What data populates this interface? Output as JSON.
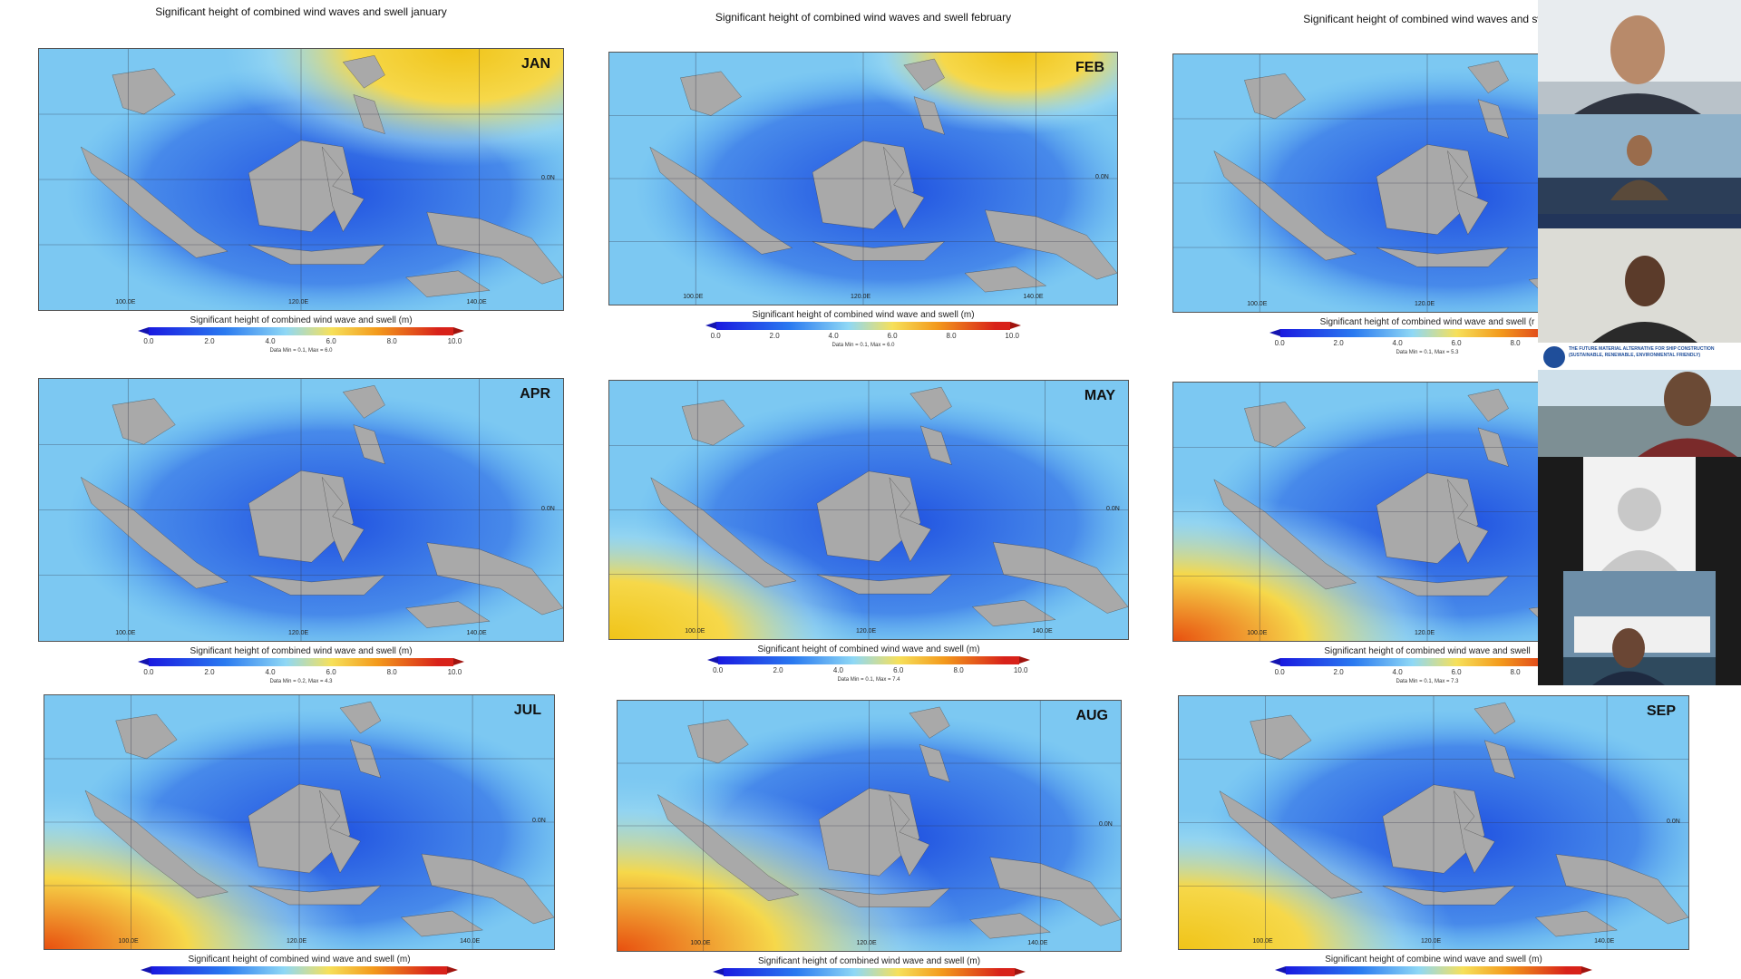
{
  "slides": {
    "panels": [
      {
        "title": "Significant height of combined wind waves and swell january",
        "month": "JAN",
        "lon_labels": [
          "100.0E",
          "120.0E",
          "140.0E"
        ],
        "lat_label": "0.0N",
        "colorbar_title": "Significant height of combined wind wave and swell (m)",
        "colorbar_ticks": [
          "0.0",
          "2.0",
          "4.0",
          "6.0",
          "8.0",
          "10.0"
        ],
        "note": "Data Min = 0.1, Max = 6.0"
      },
      {
        "title": "Significant height of combined wind waves and swell february",
        "month": "FEB",
        "lon_labels": [
          "100.0E",
          "120.0E",
          "140.0E"
        ],
        "lat_label": "0.0N",
        "colorbar_title": "Significant height of combined wind wave and swell (m)",
        "colorbar_ticks": [
          "0.0",
          "2.0",
          "4.0",
          "6.0",
          "8.0",
          "10.0"
        ],
        "note": "Data Min = 0.1, Max = 6.0"
      },
      {
        "title": "Significant height of combined wind waves and swe",
        "lon_labels": [
          "100.0E",
          "120.0E"
        ],
        "colorbar_title": "Significant height of combined wind wave and swell (r",
        "colorbar_ticks": [
          "0.0",
          "2.0",
          "4.0",
          "6.0",
          "8.0"
        ],
        "note": "Data Min = 0.1, Max = 5.3"
      },
      {
        "month": "APR",
        "lon_labels": [
          "100.0E",
          "120.0E",
          "140.0E"
        ],
        "lat_label": "0.0N",
        "colorbar_title": "Significant height of combined wind wave and swell (m)",
        "colorbar_ticks": [
          "0.0",
          "2.0",
          "4.0",
          "6.0",
          "8.0",
          "10.0"
        ],
        "note": "Data Min = 0.2, Max = 4.3"
      },
      {
        "month": "MAY",
        "lon_labels": [
          "100.0E",
          "120.0E",
          "140.0E"
        ],
        "lat_label": "0.0N",
        "colorbar_title": "Significant height of combined wind wave and swell (m)",
        "colorbar_ticks": [
          "0.0",
          "2.0",
          "4.0",
          "6.0",
          "8.0",
          "10.0"
        ],
        "note": "Data Min = 0.1, Max = 7.4"
      },
      {
        "lon_labels": [
          "100.0E",
          "120.0E"
        ],
        "colorbar_title": "Significant height of combined wind wave and swell",
        "colorbar_ticks": [
          "0.0",
          "2.0",
          "4.0",
          "6.0",
          "8.0"
        ],
        "note": "Data Min = 0.1, Max = 7.3"
      },
      {
        "month": "JUL",
        "lon_labels": [
          "100.0E",
          "120.0E",
          "140.0E"
        ],
        "lat_label": "0.0N",
        "colorbar_title": "Significant height of combined wind wave and swell (m)"
      },
      {
        "month": "AUG",
        "lon_labels": [
          "100.0E",
          "120.0E",
          "140.0E"
        ],
        "lat_label": "0.0N",
        "colorbar_title": "Significant height of combined wind wave and swell (m)"
      },
      {
        "month": "SEP",
        "lon_labels": [
          "100.0E",
          "120.0E",
          "140.0E"
        ],
        "lat_label": "0.0N",
        "colorbar_title": "Significant height of combine wind wave and swell (m)"
      }
    ]
  },
  "participants": {
    "banner": [
      "THE FUTURE MATERIAL ALTERNATIVE FOR SHIP CONSTRUCTION",
      "(SUSTAINABLE, RENEWABLE, ENVIRONMENTAL FRIENDLY)"
    ]
  }
}
